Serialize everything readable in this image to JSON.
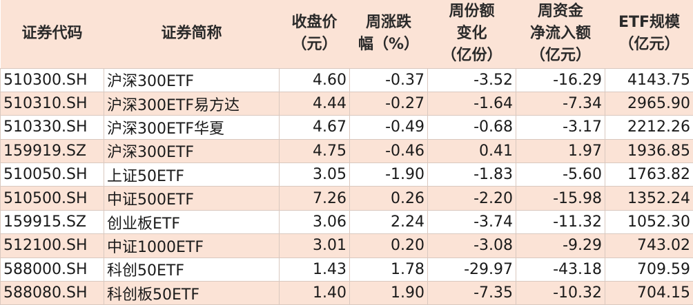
{
  "headers": [
    [
      "证券代码"
    ],
    [
      "证券简称"
    ],
    [
      "收盘价",
      "（元）"
    ],
    [
      "周涨跌",
      "幅（%）"
    ],
    [
      "周份额",
      "变化",
      "（亿份）"
    ],
    [
      "周资金",
      "净流入额",
      "（亿元）"
    ],
    [
      "ETF规模",
      "（亿元）"
    ]
  ],
  "rows": [
    [
      "510300.SH",
      "沪深300ETF",
      "4.60",
      "-0.37",
      "-3.52",
      "-16.29",
      "4143.75"
    ],
    [
      "510310.SH",
      "沪深300ETF易方达",
      "4.44",
      "-0.27",
      "-1.64",
      "-7.34",
      "2965.90"
    ],
    [
      "510330.SH",
      "沪深300ETF华夏",
      "4.67",
      "-0.49",
      "-0.68",
      "-3.17",
      "2212.26"
    ],
    [
      "159919.SZ",
      "沪深300ETF",
      "4.75",
      "-0.46",
      "0.41",
      "1.97",
      "1936.85"
    ],
    [
      "510050.SH",
      "上证50ETF",
      "3.05",
      "-1.90",
      "-1.83",
      "-5.60",
      "1763.82"
    ],
    [
      "510500.SH",
      "中证500ETF",
      "7.26",
      "0.26",
      "-2.20",
      "-15.98",
      "1352.24"
    ],
    [
      "159915.SZ",
      "创业板ETF",
      "3.06",
      "2.24",
      "-3.74",
      "-11.32",
      "1052.30"
    ],
    [
      "512100.SH",
      "中证1000ETF",
      "3.01",
      "0.20",
      "-3.08",
      "-9.29",
      "743.02"
    ],
    [
      "588000.SH",
      "科创50ETF",
      "1.43",
      "1.78",
      "-29.97",
      "-43.18",
      "709.59"
    ],
    [
      "588080.SH",
      "科创板50ETF",
      "1.40",
      "1.90",
      "-7.35",
      "-10.32",
      "704.15"
    ]
  ]
}
